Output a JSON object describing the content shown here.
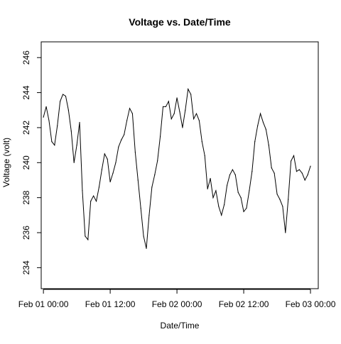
{
  "chart_data": {
    "type": "line",
    "title": "Voltage vs. Date/Time",
    "xlabel": "Date/Time",
    "ylabel": "Voltage (volt)",
    "x_ticks": [
      {
        "hours": 0,
        "label": "Feb 01 00:00"
      },
      {
        "hours": 12,
        "label": "Feb 01 12:00"
      },
      {
        "hours": 24,
        "label": "Feb 02 00:00"
      },
      {
        "hours": 36,
        "label": "Feb 02 12:00"
      },
      {
        "hours": 48,
        "label": "Feb 03 00:00"
      }
    ],
    "y_ticks": [
      234,
      236,
      238,
      240,
      242,
      244,
      246
    ],
    "xlim": [
      -0.4,
      49.4
    ],
    "ylim": [
      232.8,
      246.9
    ],
    "grid": false,
    "legend": "none",
    "series": [
      {
        "color": "#000000",
        "hours": [
          0,
          0.5,
          1,
          1.5,
          2,
          2.5,
          3,
          3.5,
          4,
          4.5,
          5,
          5.5,
          6,
          6.5,
          7,
          7.5,
          8,
          8.5,
          9,
          9.5,
          10,
          10.5,
          11,
          11.5,
          12,
          12.5,
          13,
          13.5,
          14,
          14.5,
          15,
          15.5,
          16,
          16.5,
          17,
          17.5,
          18,
          18.5,
          19,
          19.5,
          20,
          20.5,
          21,
          21.5,
          22,
          22.5,
          23,
          23.5,
          24,
          24.5,
          25,
          25.5,
          26,
          26.5,
          27,
          27.5,
          28,
          28.5,
          29,
          29.5,
          30,
          30.5,
          31,
          31.5,
          32,
          32.5,
          33,
          33.5,
          34,
          34.5,
          35,
          35.5,
          36,
          36.5,
          37,
          37.5,
          38,
          38.5,
          39,
          39.5,
          40,
          40.5,
          41,
          41.5,
          42,
          42.5,
          43,
          43.5,
          44,
          44.5,
          45,
          45.5,
          46,
          46.5,
          47,
          47.5,
          48
        ],
        "values": [
          242.6,
          243.2,
          242.4,
          241.2,
          241.0,
          242.1,
          243.5,
          243.9,
          243.8,
          243.0,
          241.8,
          240.0,
          241.0,
          242.3,
          238.4,
          235.8,
          235.6,
          237.8,
          238.1,
          237.8,
          238.6,
          239.6,
          240.5,
          240.2,
          238.9,
          239.4,
          240.0,
          240.9,
          241.3,
          241.6,
          242.4,
          243.1,
          242.8,
          240.6,
          239.0,
          237.4,
          235.8,
          235.1,
          237.0,
          238.6,
          239.3,
          240.1,
          241.5,
          243.2,
          243.2,
          243.5,
          242.5,
          242.8,
          243.7,
          242.9,
          242.0,
          243.0,
          244.2,
          243.9,
          242.5,
          242.8,
          242.4,
          241.2,
          240.4,
          238.5,
          239.1,
          238.0,
          238.4,
          237.5,
          237.0,
          237.6,
          238.7,
          239.3,
          239.6,
          239.3,
          238.3,
          238.0,
          237.2,
          237.4,
          238.4,
          239.5,
          241.2,
          242.1,
          242.8,
          242.3,
          241.9,
          241.0,
          239.7,
          239.4,
          238.2,
          237.9,
          237.5,
          236.0,
          237.9,
          240.1,
          240.4,
          239.5,
          239.6,
          239.4,
          239.0,
          239.3,
          239.8
        ]
      }
    ]
  }
}
